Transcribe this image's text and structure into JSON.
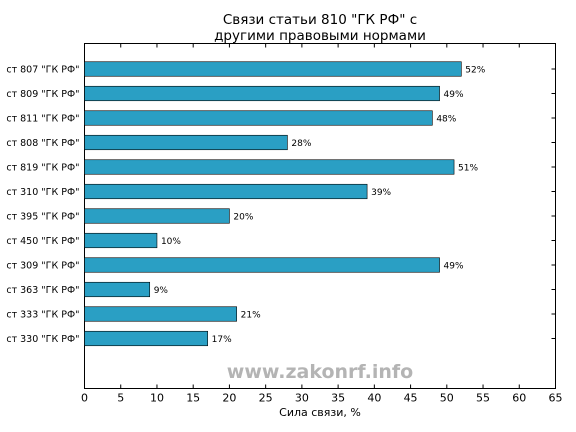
{
  "chart_data": {
    "type": "bar",
    "orientation": "horizontal",
    "title_lines": [
      "Связи статьи 810 \"ГК РФ\" с",
      "другими правовыми нормами"
    ],
    "xlabel": "Сила связи, %",
    "ylabel": "",
    "xlim": [
      0,
      65
    ],
    "xticks": [
      0,
      5,
      10,
      15,
      20,
      25,
      30,
      35,
      40,
      45,
      50,
      55,
      60,
      65
    ],
    "grid": false,
    "legend": "none",
    "bar_color": "#2a9fc4",
    "categories": [
      "ст 807 \"ГК РФ\"",
      "ст 809 \"ГК РФ\"",
      "ст 811 \"ГК РФ\"",
      "ст 808 \"ГК РФ\"",
      "ст 819 \"ГК РФ\"",
      "ст 310 \"ГК РФ\"",
      "ст 395 \"ГК РФ\"",
      "ст 450 \"ГК РФ\"",
      "ст 309 \"ГК РФ\"",
      "ст 363 \"ГК РФ\"",
      "ст 333 \"ГК РФ\"",
      "ст 330 \"ГК РФ\""
    ],
    "values": [
      52,
      49,
      48,
      28,
      51,
      39,
      20,
      10,
      49,
      9,
      21,
      17
    ],
    "value_labels": [
      "52%",
      "49%",
      "48%",
      "28%",
      "51%",
      "39%",
      "20%",
      "10%",
      "49%",
      "9%",
      "21%",
      "17%"
    ]
  },
  "watermark": "www.zakonrf.info"
}
